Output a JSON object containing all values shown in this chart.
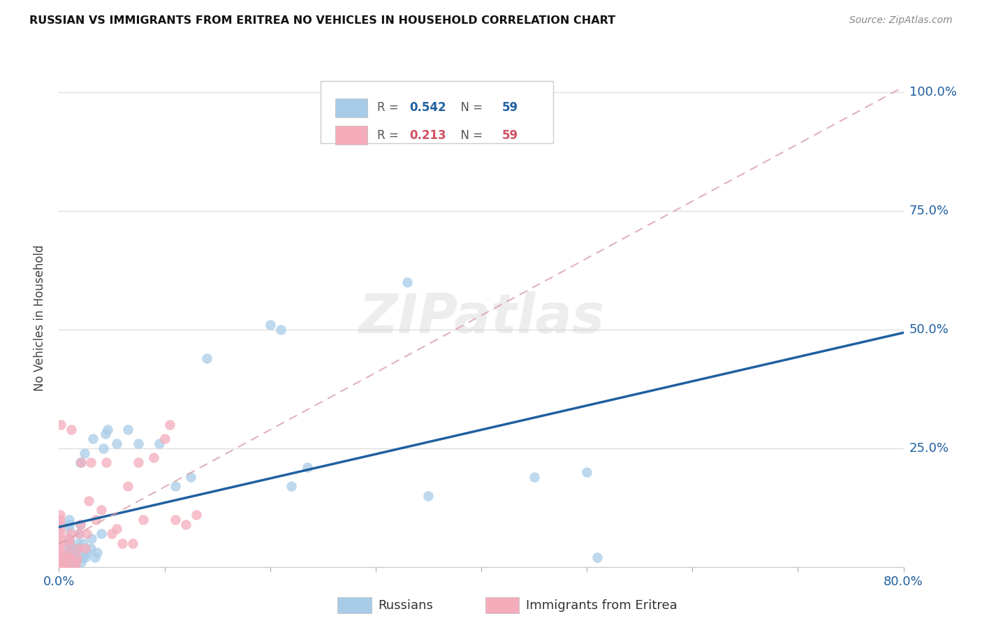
{
  "title": "RUSSIAN VS IMMIGRANTS FROM ERITREA NO VEHICLES IN HOUSEHOLD CORRELATION CHART",
  "source": "Source: ZipAtlas.com",
  "ylabel_label": "No Vehicles in Household",
  "watermark": "ZIPatlas",
  "r1": "0.542",
  "n1": "59",
  "r2": "0.213",
  "n2": "59",
  "xmin": 0.0,
  "xmax": 0.8,
  "ymin": 0.0,
  "ymax": 1.05,
  "xtick_positions": [
    0.0,
    0.1,
    0.2,
    0.3,
    0.4,
    0.5,
    0.6,
    0.7,
    0.8
  ],
  "xtick_labels": [
    "0.0%",
    "",
    "",
    "",
    "",
    "",
    "",
    "",
    "80.0%"
  ],
  "ytick_positions": [
    0.0,
    0.25,
    0.5,
    0.75,
    1.0
  ],
  "ytick_labels": [
    "",
    "25.0%",
    "50.0%",
    "75.0%",
    "100.0%"
  ],
  "blue_color": "#A8CCE8",
  "pink_color": "#F4ACBB",
  "line_blue": "#2060A0",
  "line_pink_dashed": "#D8A0A8",
  "grid_color": "#E0E0E0",
  "background_color": "#FFFFFF",
  "russians_x": [
    0.003,
    0.005,
    0.005,
    0.005,
    0.006,
    0.006,
    0.007,
    0.007,
    0.008,
    0.008,
    0.008,
    0.009,
    0.009,
    0.01,
    0.01,
    0.01,
    0.01,
    0.01,
    0.01,
    0.01,
    0.015,
    0.015,
    0.016,
    0.017,
    0.018,
    0.019,
    0.02,
    0.02,
    0.021,
    0.022,
    0.023,
    0.024,
    0.025,
    0.026,
    0.03,
    0.031,
    0.032,
    0.034,
    0.036,
    0.04,
    0.042,
    0.044,
    0.046,
    0.055,
    0.065,
    0.075,
    0.095,
    0.11,
    0.125,
    0.14,
    0.2,
    0.21,
    0.22,
    0.235,
    0.33,
    0.35,
    0.45,
    0.5,
    0.51
  ],
  "russians_y": [
    0.02,
    0.0,
    0.0,
    0.0,
    0.0,
    0.0,
    0.01,
    0.01,
    0.02,
    0.025,
    0.02,
    0.03,
    0.03,
    0.04,
    0.05,
    0.06,
    0.08,
    0.09,
    0.1,
    0.02,
    0.01,
    0.02,
    0.03,
    0.04,
    0.05,
    0.07,
    0.09,
    0.22,
    0.01,
    0.02,
    0.05,
    0.24,
    0.02,
    0.03,
    0.04,
    0.06,
    0.27,
    0.02,
    0.03,
    0.07,
    0.25,
    0.28,
    0.29,
    0.26,
    0.29,
    0.26,
    0.26,
    0.17,
    0.19,
    0.44,
    0.51,
    0.5,
    0.17,
    0.21,
    0.6,
    0.15,
    0.19,
    0.2,
    0.02
  ],
  "eritrea_x": [
    0.001,
    0.001,
    0.001,
    0.001,
    0.001,
    0.001,
    0.001,
    0.001,
    0.001,
    0.001,
    0.001,
    0.001,
    0.001,
    0.001,
    0.001,
    0.001,
    0.001,
    0.001,
    0.001,
    0.001,
    0.002,
    0.005,
    0.006,
    0.007,
    0.008,
    0.009,
    0.009,
    0.01,
    0.01,
    0.01,
    0.011,
    0.012,
    0.015,
    0.016,
    0.017,
    0.018,
    0.019,
    0.02,
    0.021,
    0.025,
    0.026,
    0.028,
    0.03,
    0.035,
    0.04,
    0.045,
    0.05,
    0.055,
    0.06,
    0.065,
    0.07,
    0.075,
    0.08,
    0.09,
    0.1,
    0.105,
    0.11,
    0.12,
    0.13
  ],
  "eritrea_y": [
    0.0,
    0.0,
    0.0,
    0.0,
    0.0,
    0.0,
    0.0,
    0.01,
    0.01,
    0.02,
    0.02,
    0.03,
    0.04,
    0.05,
    0.06,
    0.07,
    0.08,
    0.09,
    0.1,
    0.11,
    0.3,
    0.0,
    0.0,
    0.0,
    0.01,
    0.02,
    0.02,
    0.03,
    0.05,
    0.06,
    0.07,
    0.29,
    0.0,
    0.01,
    0.02,
    0.04,
    0.07,
    0.09,
    0.22,
    0.04,
    0.07,
    0.14,
    0.22,
    0.1,
    0.12,
    0.22,
    0.07,
    0.08,
    0.05,
    0.17,
    0.05,
    0.22,
    0.1,
    0.23,
    0.27,
    0.3,
    0.1,
    0.09,
    0.11
  ]
}
